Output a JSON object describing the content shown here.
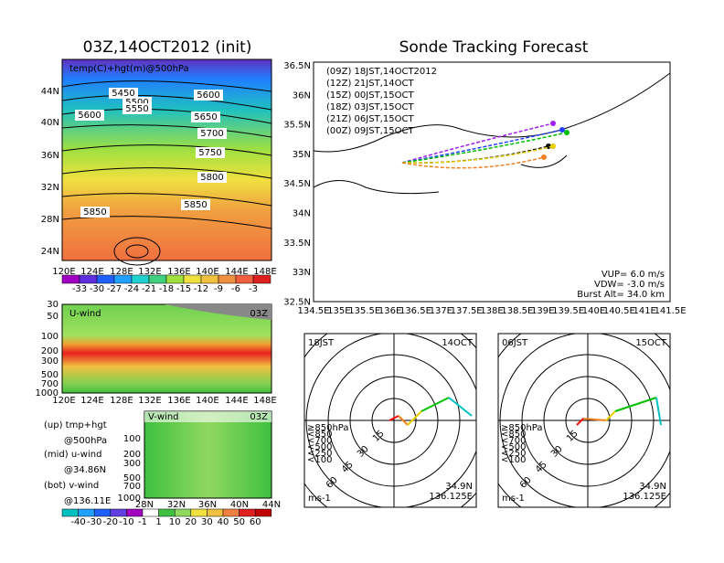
{
  "left_title": "03Z,14OCT2012 (init)",
  "map_panel": {
    "label": "temp(C)+hgt(m)@500hPa",
    "lat_labels": [
      "44N",
      "40N",
      "36N",
      "32N",
      "28N",
      "24N"
    ],
    "lon_labels": [
      "120E",
      "124E",
      "128E",
      "132E",
      "136E",
      "140E",
      "144E",
      "148E"
    ],
    "contour_labels": [
      "5450",
      "5500",
      "5550",
      "5600",
      "5600",
      "5650",
      "5700",
      "5750",
      "5800",
      "5850",
      "5850"
    ]
  },
  "temp_colorbar": [
    "-33",
    "-30",
    "-27",
    "-24",
    "-21",
    "-18",
    "-15",
    "-12",
    "-9",
    "-6",
    "-3"
  ],
  "u_panel": {
    "label": "U-wind",
    "time": "03Z",
    "p_labels": [
      "30",
      "50",
      "100",
      "200",
      "300",
      "500",
      "700",
      "1000"
    ],
    "lon_labels": [
      "120E",
      "124E",
      "128E",
      "132E",
      "136E",
      "140E",
      "144E",
      "148E"
    ]
  },
  "v_panel": {
    "label": "V-wind",
    "time": "03Z",
    "p_labels": [
      "100",
      "200",
      "300",
      "500",
      "700",
      "1000"
    ],
    "lat_labels": [
      "28N",
      "32N",
      "36N",
      "40N",
      "44N"
    ]
  },
  "notes": [
    [
      "(up) tmp+hgt",
      "@500hPa"
    ],
    [
      "(mid) u-wind",
      "@34.86N"
    ],
    [
      "(bot) v-wind",
      "@136.11E"
    ]
  ],
  "wind_colorbar": [
    "-40",
    "-30",
    "-20",
    "-10",
    "-1",
    "1",
    "10",
    "20",
    "30",
    "40",
    "50",
    "60"
  ],
  "right_title": "Sonde Tracking Forecast",
  "track_map": {
    "lat_labels": [
      "36.5N",
      "36N",
      "35.5N",
      "35N",
      "34.5N",
      "34N",
      "33.5N",
      "33N",
      "32.5N"
    ],
    "lon_labels": [
      "134.5E",
      "135E",
      "135.5E",
      "136E",
      "136.5E",
      "137E",
      "137.5E",
      "138E",
      "138.5E",
      "139E",
      "139.5E",
      "140E",
      "140.5E",
      "141E",
      "141.5E"
    ],
    "runs": [
      {
        "label": "(09Z) 18JST,14OCT2012",
        "color": "#000000"
      },
      {
        "label": "(12Z) 21JST,14OCT",
        "color": "#a020f0"
      },
      {
        "label": "(15Z) 00JST,15OCT",
        "color": "#2040ff"
      },
      {
        "label": "(18Z) 03JST,15OCT",
        "color": "#00c000"
      },
      {
        "label": "(21Z) 06JST,15OCT",
        "color": "#e8d000"
      },
      {
        "label": "(00Z) 09JST,15OCT",
        "color": "#f08020"
      }
    ],
    "notes": [
      "VUP= 6.0 m/s",
      "VDW= -3.0 m/s",
      "Burst Alt= 34.0 km"
    ]
  },
  "hodographs": [
    {
      "time": "18JST",
      "date": "14OCT",
      "levels": [
        {
          "label": "≥850hPa",
          "color": "#ff0000"
        },
        {
          "label": "<850",
          "color": "#f08020"
        },
        {
          "label": "<700",
          "color": "#e8d000"
        },
        {
          "label": "<500",
          "color": "#00c000"
        },
        {
          "label": "<250",
          "color": "#00c0c0"
        },
        {
          "label": "<100",
          "color": "#2040ff"
        }
      ],
      "rings": [
        "15",
        "30",
        "45",
        "60"
      ],
      "unit": "ms-1",
      "lat": "34.9N",
      "lon": "136.125E"
    },
    {
      "time": "06JST",
      "date": "15OCT",
      "levels": [
        {
          "label": "≥850hPa",
          "color": "#ff0000"
        },
        {
          "label": "<850",
          "color": "#f08020"
        },
        {
          "label": "<700",
          "color": "#e8d000"
        },
        {
          "label": "<500",
          "color": "#00c000"
        },
        {
          "label": "<250",
          "color": "#00c0c0"
        },
        {
          "label": "<100",
          "color": "#2040ff"
        }
      ],
      "rings": [
        "15",
        "30",
        "45",
        "60"
      ],
      "unit": "ms-1",
      "lat": "34.9N",
      "lon": "136.125E"
    }
  ]
}
